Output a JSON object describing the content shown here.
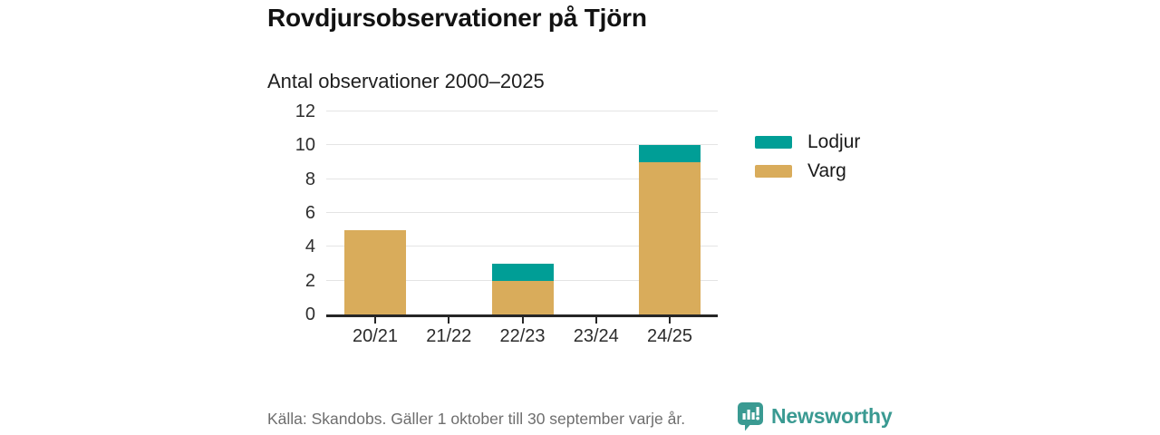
{
  "header": {
    "title": "Rovdjursobservationer på Tjörn",
    "subtitle": "Antal observationer 2000–2025"
  },
  "chart_data": {
    "type": "bar",
    "stacked": true,
    "title": "Rovdjursobservationer på Tjörn",
    "subtitle": "Antal observationer 2000–2025",
    "categories": [
      "20/21",
      "21/22",
      "22/23",
      "23/24",
      "24/25"
    ],
    "series": [
      {
        "name": "Varg",
        "color": "#D9AC5B",
        "values": [
          5,
          0,
          2,
          0,
          9
        ]
      },
      {
        "name": "Lodjur",
        "color": "#009E96",
        "values": [
          0,
          0,
          1,
          0,
          1
        ]
      }
    ],
    "totals": [
      5,
      0,
      3,
      0,
      10
    ],
    "xlabel": "",
    "ylabel": "",
    "ylim": [
      0,
      12
    ],
    "yticks": [
      0,
      2,
      4,
      6,
      8,
      10,
      12
    ],
    "grid": true,
    "legend_position": "right",
    "legend": [
      {
        "label": "Lodjur",
        "color": "#009E96"
      },
      {
        "label": "Varg",
        "color": "#D9AC5B"
      }
    ]
  },
  "footer": {
    "source": "Källa: Skandobs. Gäller 1 oktober till 30 september varje år.",
    "brand": "Newsworthy"
  },
  "colors": {
    "lodjur": "#009E96",
    "varg": "#D9AC5B",
    "axis": "#262626",
    "grid": "#E4E4E4",
    "brand_teal": "#3A9A92",
    "background": "#FFFFFF"
  },
  "icons": {
    "brand_logo": "newsworthy-speech-bubble-bar-chart-icon"
  }
}
